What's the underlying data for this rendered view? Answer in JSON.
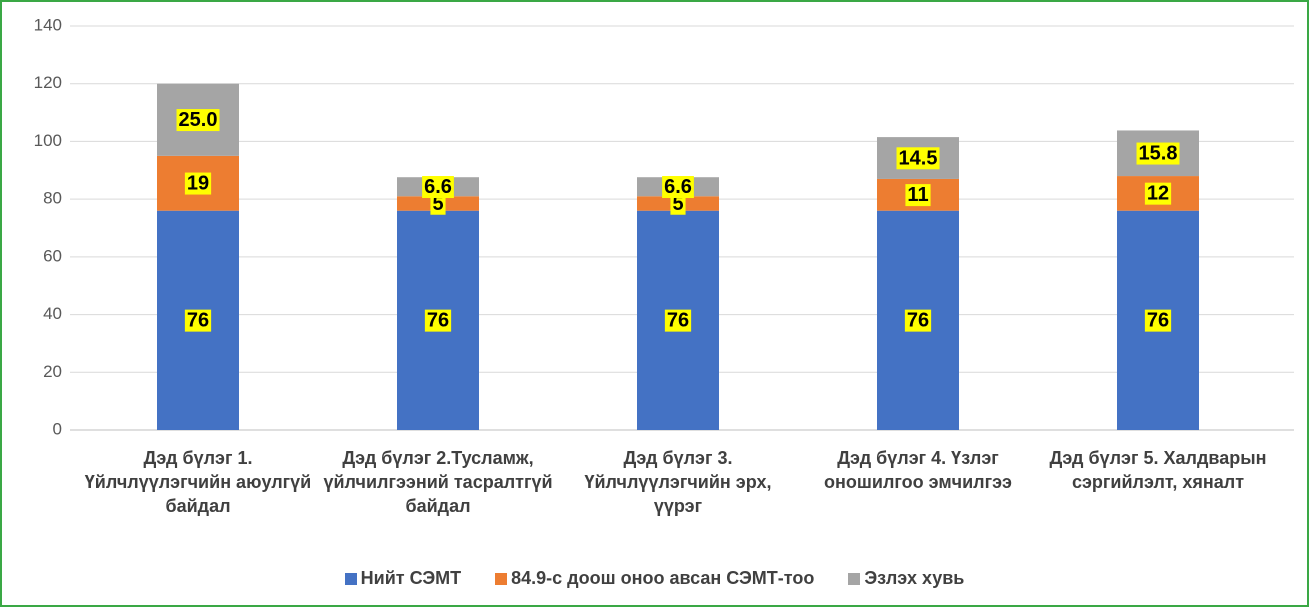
{
  "chart_data": {
    "type": "stacked_bar",
    "categories": [
      "Дэд бүлэг 1. Үйлчлүүлэгчийн аюулгүй байдал",
      "Дэд бүлэг 2.Тусламж, үйлчилгээний тасралтгүй байдал",
      "Дэд бүлэг 3. Үйлчлүүлэгчийн эрх, үүрэг",
      "Дэд бүлэг 4. Үзлэг оношилгоо эмчилгээ",
      "Дэд бүлэг 5. Халдварын сэргийлэлт, хяналт"
    ],
    "series": [
      {
        "name": "Нийт СЭМТ",
        "color": "#4472c4",
        "values": [
          76,
          76,
          76,
          76,
          76
        ]
      },
      {
        "name": "84.9-с доош оноо авсан СЭМТ-тоо",
        "color": "#ed7d31",
        "values": [
          19,
          5,
          5,
          11,
          12
        ]
      },
      {
        "name": "Эзлэх хувь",
        "color": "#a5a5a5",
        "values": [
          25.0,
          6.6,
          6.6,
          14.5,
          15.8
        ],
        "value_labels": [
          "25.0",
          "6.6",
          "6.6",
          "14.5",
          "15.8"
        ]
      }
    ],
    "ylim": [
      0,
      140
    ],
    "yticks": [
      0,
      20,
      40,
      60,
      80,
      100,
      120,
      140
    ],
    "grid": true,
    "legend": "bottom"
  }
}
